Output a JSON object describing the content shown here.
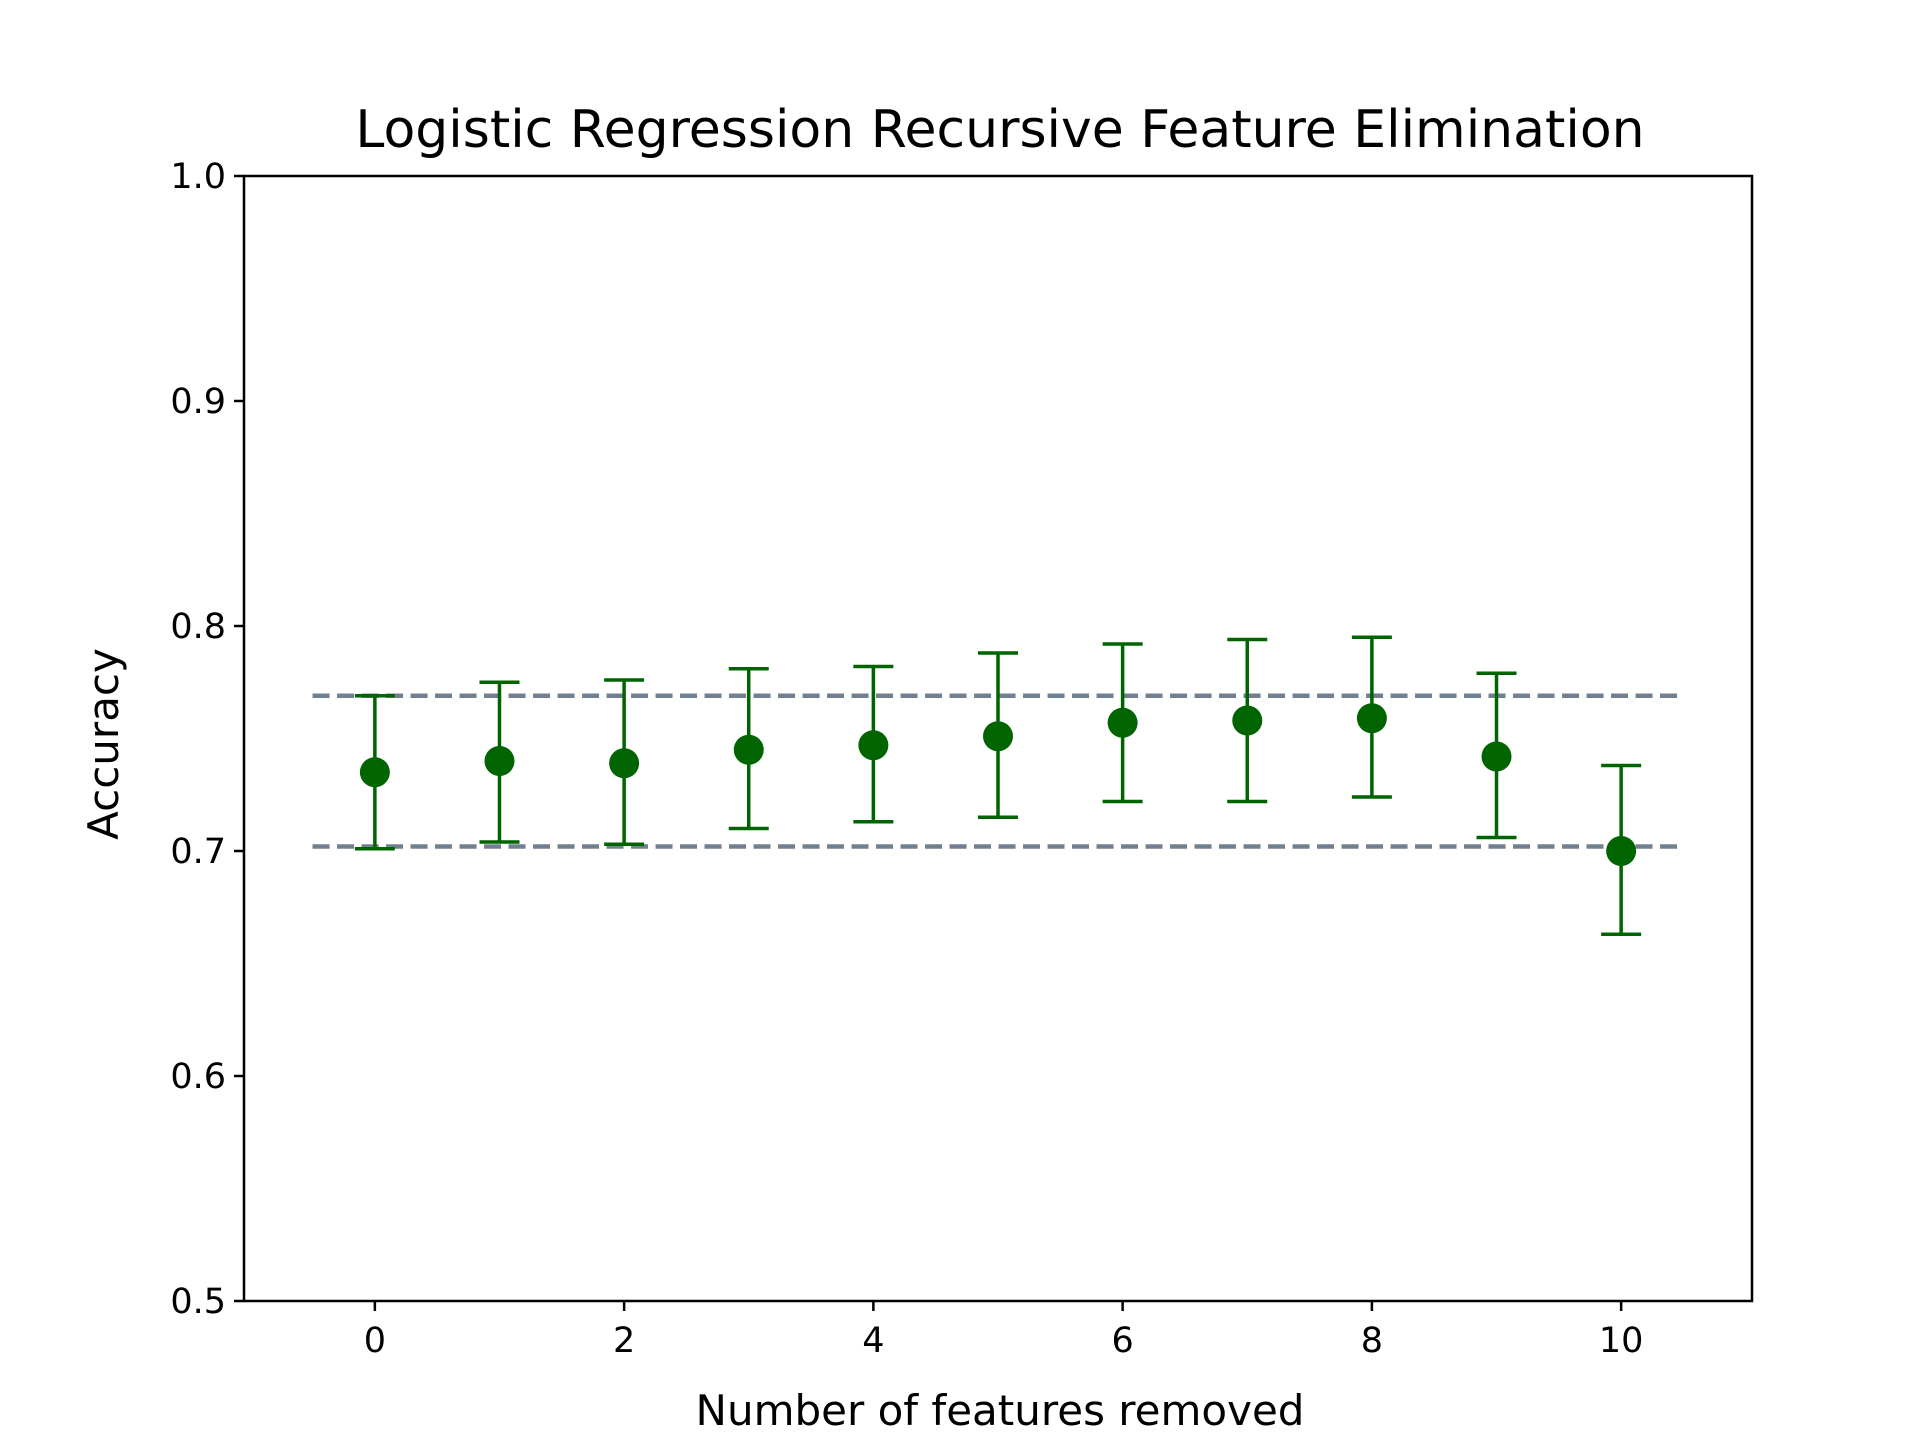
{
  "chart_data": {
    "type": "scatter",
    "title": "Logistic Regression Recursive Feature Elimination",
    "xlabel": "Number of features removed",
    "ylabel": "Accuracy",
    "xlim": [
      -1.05,
      11.05
    ],
    "ylim": [
      0.5,
      1.0
    ],
    "xticks": [
      0,
      2,
      4,
      6,
      8,
      10
    ],
    "xtick_labels": [
      "0",
      "2",
      "4",
      "6",
      "8",
      "10"
    ],
    "yticks": [
      0.5,
      0.6,
      0.7,
      0.8,
      0.9,
      1.0
    ],
    "ytick_labels": [
      "0.5",
      "0.6",
      "0.7",
      "0.8",
      "0.9",
      "1.0"
    ],
    "grid": false,
    "series": [
      {
        "x": [
          0,
          1,
          2,
          3,
          4,
          5,
          6,
          7,
          8,
          9,
          10
        ],
        "y": [
          0.735,
          0.74,
          0.739,
          0.745,
          0.747,
          0.751,
          0.757,
          0.758,
          0.759,
          0.742,
          0.7
        ],
        "err_lower": [
          0.701,
          0.704,
          0.703,
          0.71,
          0.713,
          0.715,
          0.722,
          0.722,
          0.724,
          0.706,
          0.663
        ],
        "err_upper": [
          0.769,
          0.775,
          0.776,
          0.781,
          0.782,
          0.788,
          0.792,
          0.794,
          0.795,
          0.779,
          0.738
        ],
        "color": "#006400"
      }
    ],
    "reference_lines": [
      {
        "y": 0.769,
        "x_range": [
          -0.5,
          10.5
        ],
        "style": "dashed",
        "color": "#708090"
      },
      {
        "y": 0.702,
        "x_range": [
          -0.5,
          10.5
        ],
        "style": "dashed",
        "color": "#708090"
      }
    ]
  }
}
